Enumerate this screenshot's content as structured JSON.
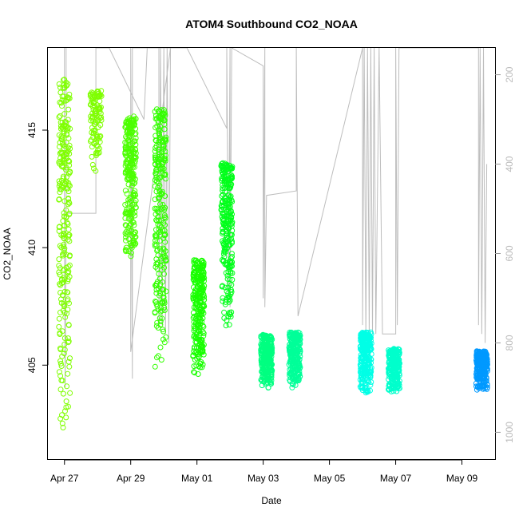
{
  "chart_data": {
    "type": "scatter",
    "title": "ATOM4 Southbound CO2_NOAA",
    "xlabel": "Date",
    "ylabel": "CO2_NOAA",
    "x_ticks": [
      "Apr 27",
      "Apr 29",
      "May 01",
      "May 03",
      "May 05",
      "May 07",
      "May 09"
    ],
    "x_tick_days": [
      0,
      2,
      4,
      6,
      8,
      10,
      12
    ],
    "xlim_days": [
      -0.5,
      13.0
    ],
    "y_ticks": [
      405,
      410,
      415
    ],
    "ylim": [
      401.0,
      418.5
    ],
    "y2_ticks": [
      200,
      400,
      600,
      800,
      1000
    ],
    "y2lim": [
      1060,
      140
    ],
    "y2_reversed": true,
    "grid": false,
    "legend": "none",
    "series": [
      {
        "day": 0.0,
        "ymin": 401.8,
        "ymax": 417.2,
        "color": "#7fff00",
        "density": "high"
      },
      {
        "day": 0.95,
        "ymin": 413.2,
        "ymax": 416.7,
        "color": "#7fff00",
        "density": "medium"
      },
      {
        "day": 2.0,
        "ymin": 409.5,
        "ymax": 415.6,
        "color": "#4cff00",
        "density": "high"
      },
      {
        "day": 2.9,
        "ymin": 404.6,
        "ymax": 415.9,
        "color": "#33ff00",
        "density": "high"
      },
      {
        "day": 4.05,
        "ymin": 404.6,
        "ymax": 409.5,
        "color": "#19ff00",
        "density": "high"
      },
      {
        "day": 4.9,
        "ymin": 406.4,
        "ymax": 413.6,
        "color": "#00ff1a",
        "density": "high"
      },
      {
        "day": 6.1,
        "ymin": 404.0,
        "ymax": 406.3,
        "color": "#00ff80",
        "density": "high"
      },
      {
        "day": 6.95,
        "ymin": 404.0,
        "ymax": 406.4,
        "color": "#00ff99",
        "density": "high"
      },
      {
        "day": 9.1,
        "ymin": 403.8,
        "ymax": 406.4,
        "color": "#00ffe6",
        "density": "high"
      },
      {
        "day": 9.95,
        "ymin": 403.8,
        "ymax": 405.7,
        "color": "#00ffcc",
        "density": "high"
      },
      {
        "day": 12.6,
        "ymin": 403.9,
        "ymax": 405.6,
        "color": "#0099ff",
        "density": "high"
      }
    ],
    "pressure_profile": {
      "color": "#bdbdbd",
      "points": [
        [
          0.0,
          140
        ],
        [
          0.0,
          200
        ],
        [
          0.0,
          560
        ],
        [
          0.02,
          900
        ],
        [
          0.05,
          510
        ],
        [
          0.05,
          200
        ],
        [
          0.05,
          140
        ],
        [
          0.05,
          510
        ],
        [
          0.95,
          510
        ],
        [
          0.95,
          140
        ],
        [
          1.35,
          140
        ],
        [
          2.4,
          300
        ],
        [
          2.5,
          140
        ],
        [
          2.55,
          140
        ],
        [
          3.2,
          140
        ],
        [
          2.0,
          820
        ],
        [
          2.0,
          140
        ],
        [
          2.05,
          880
        ],
        [
          2.05,
          140
        ],
        [
          2.85,
          140
        ],
        [
          2.85,
          760
        ],
        [
          2.9,
          140
        ],
        [
          2.95,
          760
        ],
        [
          3.0,
          140
        ],
        [
          3.05,
          780
        ],
        [
          3.1,
          140
        ],
        [
          3.15,
          800
        ],
        [
          3.2,
          140
        ],
        [
          3.7,
          140
        ],
        [
          4.9,
          320
        ],
        [
          4.9,
          140
        ],
        [
          4.95,
          700
        ],
        [
          5.0,
          140
        ],
        [
          5.0,
          720
        ],
        [
          5.05,
          140
        ],
        [
          6.0,
          180
        ],
        [
          6.0,
          700
        ],
        [
          6.05,
          140
        ],
        [
          6.05,
          720
        ],
        [
          6.1,
          470
        ],
        [
          7.0,
          460
        ],
        [
          7.0,
          140
        ],
        [
          7.05,
          740
        ],
        [
          9.0,
          140
        ],
        [
          9.0,
          760
        ],
        [
          9.05,
          140
        ],
        [
          9.1,
          780
        ],
        [
          9.15,
          140
        ],
        [
          9.2,
          780
        ],
        [
          9.25,
          140
        ],
        [
          9.3,
          780
        ],
        [
          9.35,
          140
        ],
        [
          9.4,
          780
        ],
        [
          9.5,
          140
        ],
        [
          9.6,
          780
        ],
        [
          9.6,
          780
        ],
        [
          10.0,
          780
        ],
        [
          10.0,
          140
        ],
        [
          10.05,
          760
        ],
        [
          10.1,
          140
        ],
        [
          12.5,
          140
        ],
        [
          12.5,
          760
        ],
        [
          12.55,
          140
        ],
        [
          12.6,
          780
        ],
        [
          12.65,
          140
        ],
        [
          12.7,
          800
        ],
        [
          12.75,
          400
        ]
      ]
    }
  }
}
